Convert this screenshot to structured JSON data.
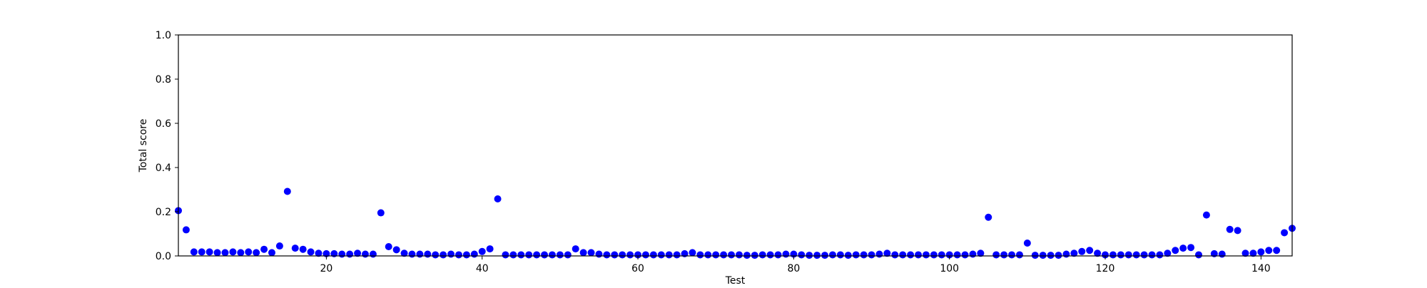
{
  "chart_data": {
    "type": "scatter",
    "title": "",
    "xlabel": "Test",
    "ylabel": "Total score",
    "xlim": [
      1,
      144
    ],
    "ylim": [
      0,
      1.0
    ],
    "xticks": [
      20,
      40,
      60,
      80,
      100,
      120,
      140
    ],
    "yticks": [
      0.0,
      0.2,
      0.4,
      0.6,
      0.8,
      1.0
    ],
    "xtick_labels": [
      "20",
      "40",
      "60",
      "80",
      "100",
      "120",
      "140"
    ],
    "ytick_labels": [
      "0.0",
      "0.2",
      "0.4",
      "0.6",
      "0.8",
      "1.0"
    ],
    "grid": false,
    "marker_color": "#0000ff",
    "series": [
      {
        "x": [
          1,
          2,
          3,
          4,
          5,
          6,
          7,
          8,
          9,
          10,
          11,
          12,
          13,
          14,
          15,
          16,
          17,
          18,
          19,
          20,
          21,
          22,
          23,
          24,
          25,
          26,
          27,
          28,
          29,
          30,
          31,
          32,
          33,
          34,
          35,
          36,
          37,
          38,
          39,
          40,
          41,
          42,
          43,
          44,
          45,
          46,
          47,
          48,
          49,
          50,
          51,
          52,
          53,
          54,
          55,
          56,
          57,
          58,
          59,
          60,
          61,
          62,
          63,
          64,
          65,
          66,
          67,
          68,
          69,
          70,
          71,
          72,
          73,
          74,
          75,
          76,
          77,
          78,
          79,
          80,
          81,
          82,
          83,
          84,
          85,
          86,
          87,
          88,
          89,
          90,
          91,
          92,
          93,
          94,
          95,
          96,
          97,
          98,
          99,
          100,
          101,
          102,
          103,
          104,
          105,
          106,
          107,
          108,
          109,
          110,
          111,
          112,
          113,
          114,
          115,
          116,
          117,
          118,
          119,
          120,
          121,
          122,
          123,
          124,
          125,
          126,
          127,
          128,
          129,
          130,
          131,
          132,
          133,
          134,
          135,
          136,
          137,
          138,
          139,
          140,
          141,
          142,
          143,
          144
        ],
        "y": [
          0.205,
          0.118,
          0.018,
          0.018,
          0.018,
          0.015,
          0.015,
          0.018,
          0.015,
          0.018,
          0.015,
          0.03,
          0.015,
          0.045,
          0.292,
          0.035,
          0.03,
          0.018,
          0.012,
          0.01,
          0.01,
          0.008,
          0.008,
          0.012,
          0.008,
          0.008,
          0.195,
          0.042,
          0.028,
          0.012,
          0.008,
          0.008,
          0.008,
          0.005,
          0.005,
          0.008,
          0.005,
          0.005,
          0.008,
          0.02,
          0.032,
          0.258,
          0.005,
          0.005,
          0.005,
          0.005,
          0.005,
          0.005,
          0.005,
          0.005,
          0.005,
          0.032,
          0.015,
          0.015,
          0.008,
          0.005,
          0.005,
          0.005,
          0.005,
          0.005,
          0.005,
          0.005,
          0.005,
          0.005,
          0.005,
          0.01,
          0.015,
          0.005,
          0.005,
          0.005,
          0.005,
          0.005,
          0.005,
          0.003,
          0.003,
          0.005,
          0.005,
          0.005,
          0.008,
          0.008,
          0.005,
          0.003,
          0.003,
          0.003,
          0.005,
          0.005,
          0.003,
          0.005,
          0.005,
          0.005,
          0.008,
          0.012,
          0.005,
          0.005,
          0.005,
          0.005,
          0.005,
          0.005,
          0.005,
          0.005,
          0.005,
          0.005,
          0.008,
          0.012,
          0.175,
          0.005,
          0.005,
          0.005,
          0.005,
          0.058,
          0.003,
          0.003,
          0.003,
          0.003,
          0.008,
          0.012,
          0.02,
          0.025,
          0.012,
          0.005,
          0.005,
          0.005,
          0.005,
          0.005,
          0.005,
          0.005,
          0.005,
          0.012,
          0.025,
          0.035,
          0.038,
          0.005,
          0.185,
          0.01,
          0.008,
          0.12,
          0.115,
          0.012,
          0.012,
          0.018,
          0.025,
          0.025,
          0.105,
          0.125
        ]
      }
    ]
  }
}
